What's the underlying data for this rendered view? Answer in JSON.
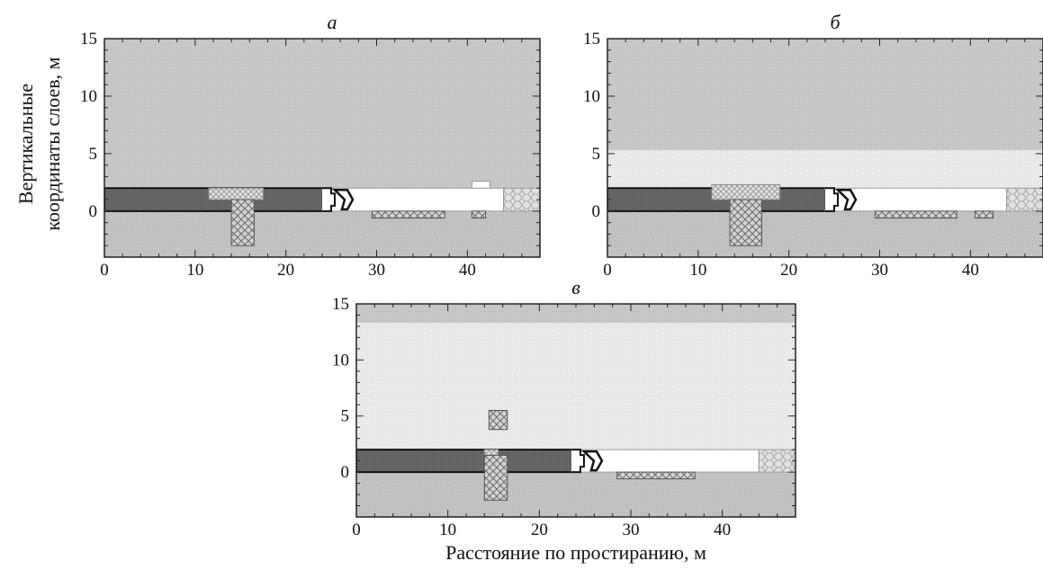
{
  "figure": {
    "ylabel_line1": "Вертикальные",
    "ylabel_line2": "координаты слоев, м",
    "xlabel": "Расстояние по простиранию, м"
  },
  "chart_data": [
    {
      "type": "area",
      "title": "а",
      "xlim": [
        0,
        48
      ],
      "ylim": [
        -4,
        15
      ],
      "x_ticks": [
        0,
        10,
        20,
        30,
        40
      ],
      "y_ticks": [
        0,
        5,
        10,
        15
      ],
      "regions": [
        {
          "name": "roof-rock",
          "fill": "roof",
          "x": [
            0,
            48
          ],
          "y": [
            2,
            15
          ]
        },
        {
          "name": "floor-rock",
          "fill": "floor",
          "x": [
            0,
            48
          ],
          "y": [
            -4,
            0
          ]
        },
        {
          "name": "coal-seam",
          "fill": "coal",
          "x": [
            0,
            24
          ],
          "y": [
            0,
            2
          ]
        },
        {
          "name": "goaf-open",
          "fill": "open",
          "x": [
            24,
            44
          ],
          "y": [
            0,
            2
          ]
        },
        {
          "name": "goaf-hump",
          "fill": "open",
          "x": [
            40.5,
            42.5
          ],
          "y": [
            2,
            2.6
          ]
        },
        {
          "name": "roof-break",
          "fill": "lightcross",
          "x": [
            11.5,
            17.5
          ],
          "y": [
            1,
            2
          ]
        },
        {
          "name": "fracture-column",
          "fill": "cross",
          "x": [
            14,
            16.5
          ],
          "y": [
            -3,
            1
          ]
        },
        {
          "name": "floor-heave",
          "fill": "cross",
          "x": [
            29.5,
            37.5
          ],
          "y": [
            -0.6,
            0
          ]
        },
        {
          "name": "floor-heave-small",
          "fill": "cross",
          "x": [
            40.5,
            42
          ],
          "y": [
            -0.6,
            0
          ]
        },
        {
          "name": "waste-pack",
          "fill": "pack",
          "x": [
            44,
            48
          ],
          "y": [
            0,
            2
          ]
        }
      ]
    },
    {
      "type": "area",
      "title": "б",
      "xlim": [
        0,
        48
      ],
      "ylim": [
        -4,
        15
      ],
      "x_ticks": [
        0,
        10,
        20,
        30,
        40
      ],
      "y_ticks": [
        0,
        5,
        10,
        15
      ],
      "regions": [
        {
          "name": "roof-rock",
          "fill": "roof",
          "x": [
            0,
            48
          ],
          "y": [
            5.3,
            15
          ]
        },
        {
          "name": "subsided-zone",
          "fill": "subsided",
          "x": [
            0,
            48
          ],
          "y": [
            2,
            5.3
          ]
        },
        {
          "name": "floor-rock",
          "fill": "floor",
          "x": [
            0,
            48
          ],
          "y": [
            -4,
            0
          ]
        },
        {
          "name": "coal-seam",
          "fill": "coal",
          "x": [
            0,
            24
          ],
          "y": [
            0,
            2
          ]
        },
        {
          "name": "goaf-open",
          "fill": "open",
          "x": [
            24,
            44
          ],
          "y": [
            0,
            2
          ]
        },
        {
          "name": "roof-break",
          "fill": "lightcross",
          "x": [
            11.5,
            19
          ],
          "y": [
            1,
            2.3
          ]
        },
        {
          "name": "fracture-column",
          "fill": "cross",
          "x": [
            13.5,
            17
          ],
          "y": [
            -3,
            1
          ]
        },
        {
          "name": "floor-heave",
          "fill": "cross",
          "x": [
            29.5,
            38.5
          ],
          "y": [
            -0.6,
            0
          ]
        },
        {
          "name": "floor-heave-small",
          "fill": "cross",
          "x": [
            40.5,
            42.5
          ],
          "y": [
            -0.6,
            0
          ]
        },
        {
          "name": "waste-pack",
          "fill": "pack",
          "x": [
            44,
            48
          ],
          "y": [
            0,
            2
          ]
        }
      ]
    },
    {
      "type": "area",
      "title": "в",
      "xlim": [
        0,
        48
      ],
      "ylim": [
        -4,
        15
      ],
      "x_ticks": [
        0,
        10,
        20,
        30,
        40
      ],
      "y_ticks": [
        0,
        5,
        10,
        15
      ],
      "regions": [
        {
          "name": "roof-rock",
          "fill": "roof",
          "x": [
            0,
            48
          ],
          "y": [
            13.3,
            15
          ]
        },
        {
          "name": "subsided-zone",
          "fill": "subsided",
          "x": [
            0,
            48
          ],
          "y": [
            2,
            13.3
          ]
        },
        {
          "name": "floor-rock",
          "fill": "floor",
          "x": [
            0,
            48
          ],
          "y": [
            -4,
            0
          ]
        },
        {
          "name": "coal-seam",
          "fill": "coal",
          "x": [
            0,
            23.5
          ],
          "y": [
            0,
            2
          ]
        },
        {
          "name": "goaf-open",
          "fill": "open",
          "x": [
            23.5,
            44
          ],
          "y": [
            0,
            2
          ]
        },
        {
          "name": "fracture-block",
          "fill": "cross",
          "x": [
            14.5,
            16.5
          ],
          "y": [
            3.8,
            5.5
          ]
        },
        {
          "name": "roof-break",
          "fill": "lightcross",
          "x": [
            14,
            15.5
          ],
          "y": [
            1,
            2
          ]
        },
        {
          "name": "fracture-column",
          "fill": "cross",
          "x": [
            14,
            16.5
          ],
          "y": [
            -2.5,
            1.5
          ]
        },
        {
          "name": "floor-heave",
          "fill": "cross",
          "x": [
            28.5,
            37
          ],
          "y": [
            -0.6,
            0
          ]
        },
        {
          "name": "waste-pack",
          "fill": "pack",
          "x": [
            44,
            48
          ],
          "y": [
            0,
            2
          ]
        }
      ]
    }
  ]
}
